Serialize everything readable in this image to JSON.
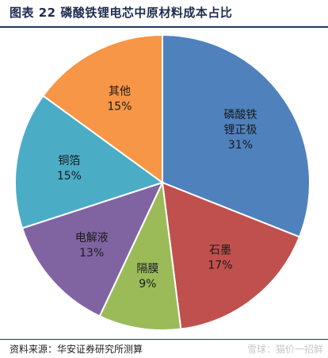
{
  "header": {
    "title": "图表 22 磷酸铁锂电芯中原材料成本占比"
  },
  "footer": {
    "source": "资料来源：华安证券研究所测算",
    "watermark": "雪球：猫价一招鲜"
  },
  "chart_data": {
    "type": "pie",
    "title": "图表 22 磷酸铁锂电芯中原材料成本占比",
    "start_angle_deg": 0,
    "direction": "clockwise",
    "slices": [
      {
        "label_lines": [
          "磷酸铁",
          "锂正极"
        ],
        "value": 31,
        "display": "31%",
        "color": "#4f81bd"
      },
      {
        "label_lines": [
          "石墨"
        ],
        "value": 17,
        "display": "17%",
        "color": "#c0504d"
      },
      {
        "label_lines": [
          "隔膜"
        ],
        "value": 9,
        "display": "9%",
        "color": "#9bbb59"
      },
      {
        "label_lines": [
          "电解液"
        ],
        "value": 13,
        "display": "13%",
        "color": "#8064a2"
      },
      {
        "label_lines": [
          "铜箔"
        ],
        "value": 15,
        "display": "15%",
        "color": "#4bacc6"
      },
      {
        "label_lines": [
          "其他"
        ],
        "value": 15,
        "display": "15%",
        "color": "#f79646"
      }
    ]
  }
}
